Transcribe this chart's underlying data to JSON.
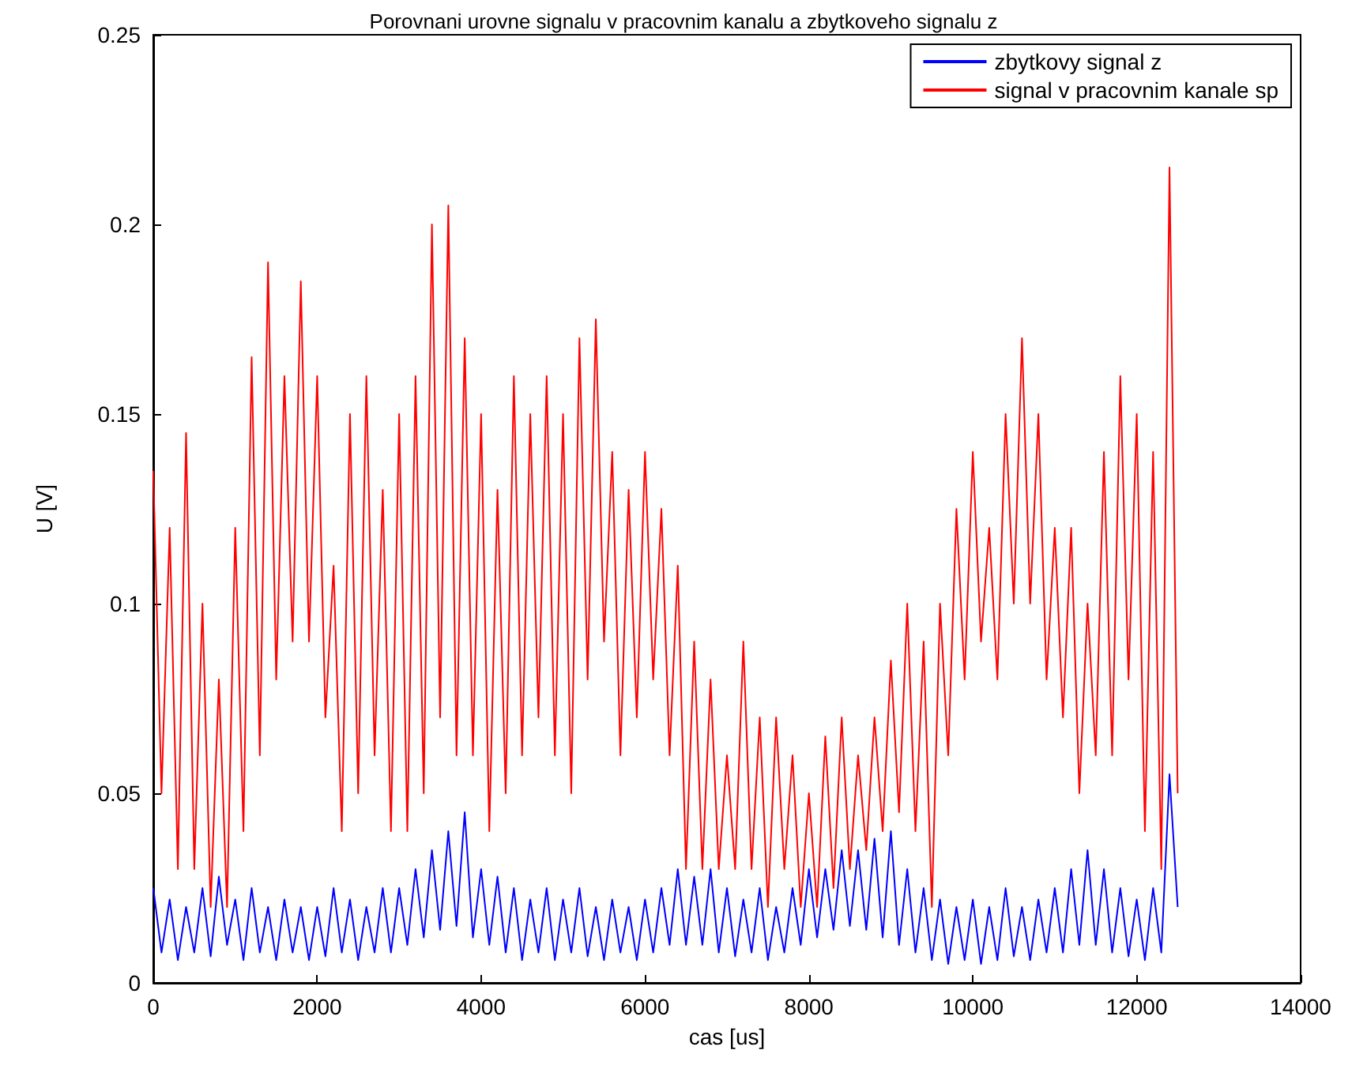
{
  "chart_data": {
    "type": "line",
    "title": "Porovnani urovne signalu v pracovnim kanalu a zbytkoveho signalu z",
    "xlabel": "cas [us]",
    "ylabel": "U [V]",
    "x": [
      0,
      100,
      200,
      300,
      400,
      500,
      600,
      700,
      800,
      900,
      1000,
      1100,
      1200,
      1300,
      1400,
      1500,
      1600,
      1700,
      1800,
      1900,
      2000,
      2100,
      2200,
      2300,
      2400,
      2500,
      2600,
      2700,
      2800,
      2900,
      3000,
      3100,
      3200,
      3300,
      3400,
      3500,
      3600,
      3700,
      3800,
      3900,
      4000,
      4100,
      4200,
      4300,
      4400,
      4500,
      4600,
      4700,
      4800,
      4900,
      5000,
      5100,
      5200,
      5300,
      5400,
      5500,
      5600,
      5700,
      5800,
      5900,
      6000,
      6100,
      6200,
      6300,
      6400,
      6500,
      6600,
      6700,
      6800,
      6900,
      7000,
      7100,
      7200,
      7300,
      7400,
      7500,
      7600,
      7700,
      7800,
      7900,
      8000,
      8100,
      8200,
      8300,
      8400,
      8500,
      8600,
      8700,
      8800,
      8900,
      9000,
      9100,
      9200,
      9300,
      9400,
      9500,
      9600,
      9700,
      9800,
      9900,
      10000,
      10100,
      10200,
      10300,
      10400,
      10500,
      10600,
      10700,
      10800,
      10900,
      11000,
      11100,
      11200,
      11300,
      11400,
      11500,
      11600,
      11700,
      11800,
      11900,
      12000,
      12100,
      12200,
      12300,
      12400,
      12500
    ],
    "series": [
      {
        "name": "zbytkovy signal z",
        "color": "#0000ff",
        "values": [
          0.025,
          0.008,
          0.022,
          0.006,
          0.02,
          0.008,
          0.025,
          0.007,
          0.028,
          0.01,
          0.022,
          0.006,
          0.025,
          0.008,
          0.02,
          0.006,
          0.022,
          0.008,
          0.02,
          0.006,
          0.02,
          0.007,
          0.025,
          0.008,
          0.022,
          0.006,
          0.02,
          0.008,
          0.025,
          0.008,
          0.025,
          0.01,
          0.03,
          0.012,
          0.035,
          0.014,
          0.04,
          0.015,
          0.045,
          0.012,
          0.03,
          0.01,
          0.028,
          0.008,
          0.025,
          0.006,
          0.022,
          0.008,
          0.025,
          0.006,
          0.022,
          0.008,
          0.025,
          0.007,
          0.02,
          0.006,
          0.022,
          0.008,
          0.02,
          0.006,
          0.022,
          0.008,
          0.025,
          0.01,
          0.03,
          0.01,
          0.028,
          0.01,
          0.03,
          0.008,
          0.025,
          0.007,
          0.022,
          0.008,
          0.025,
          0.006,
          0.02,
          0.008,
          0.025,
          0.01,
          0.03,
          0.012,
          0.03,
          0.014,
          0.035,
          0.015,
          0.035,
          0.014,
          0.038,
          0.012,
          0.04,
          0.01,
          0.03,
          0.008,
          0.025,
          0.006,
          0.022,
          0.005,
          0.02,
          0.006,
          0.022,
          0.005,
          0.02,
          0.006,
          0.025,
          0.007,
          0.02,
          0.006,
          0.022,
          0.008,
          0.025,
          0.008,
          0.03,
          0.01,
          0.035,
          0.01,
          0.03,
          0.008,
          0.025,
          0.007,
          0.022,
          0.006,
          0.025,
          0.008,
          0.055,
          0.02
        ]
      },
      {
        "name": "signal v pracovnim kanale sp",
        "color": "#ff0000",
        "values": [
          0.135,
          0.05,
          0.12,
          0.03,
          0.145,
          0.03,
          0.1,
          0.02,
          0.08,
          0.02,
          0.12,
          0.04,
          0.165,
          0.06,
          0.19,
          0.08,
          0.16,
          0.09,
          0.185,
          0.09,
          0.16,
          0.07,
          0.11,
          0.04,
          0.15,
          0.05,
          0.16,
          0.06,
          0.13,
          0.04,
          0.15,
          0.04,
          0.16,
          0.05,
          0.2,
          0.07,
          0.205,
          0.06,
          0.17,
          0.06,
          0.15,
          0.04,
          0.13,
          0.05,
          0.16,
          0.06,
          0.15,
          0.07,
          0.16,
          0.06,
          0.15,
          0.05,
          0.17,
          0.08,
          0.175,
          0.09,
          0.14,
          0.06,
          0.13,
          0.07,
          0.14,
          0.08,
          0.125,
          0.06,
          0.11,
          0.03,
          0.09,
          0.03,
          0.08,
          0.03,
          0.06,
          0.03,
          0.09,
          0.03,
          0.07,
          0.02,
          0.07,
          0.03,
          0.06,
          0.02,
          0.05,
          0.02,
          0.065,
          0.025,
          0.07,
          0.03,
          0.06,
          0.035,
          0.07,
          0.04,
          0.085,
          0.045,
          0.1,
          0.04,
          0.09,
          0.02,
          0.1,
          0.06,
          0.125,
          0.08,
          0.14,
          0.09,
          0.12,
          0.08,
          0.15,
          0.1,
          0.17,
          0.1,
          0.15,
          0.08,
          0.12,
          0.07,
          0.12,
          0.05,
          0.1,
          0.06,
          0.14,
          0.06,
          0.16,
          0.08,
          0.15,
          0.04,
          0.14,
          0.03,
          0.215,
          0.05
        ]
      }
    ],
    "xlim": [
      0,
      14000
    ],
    "xticks": [
      0,
      2000,
      4000,
      6000,
      8000,
      10000,
      12000,
      14000
    ],
    "ylim": [
      0,
      0.25
    ],
    "yticks": [
      0,
      0.05,
      0.1,
      0.15,
      0.2,
      0.25
    ],
    "grid": false,
    "legend": "top right",
    "marker": "none",
    "line_style": "solid"
  }
}
